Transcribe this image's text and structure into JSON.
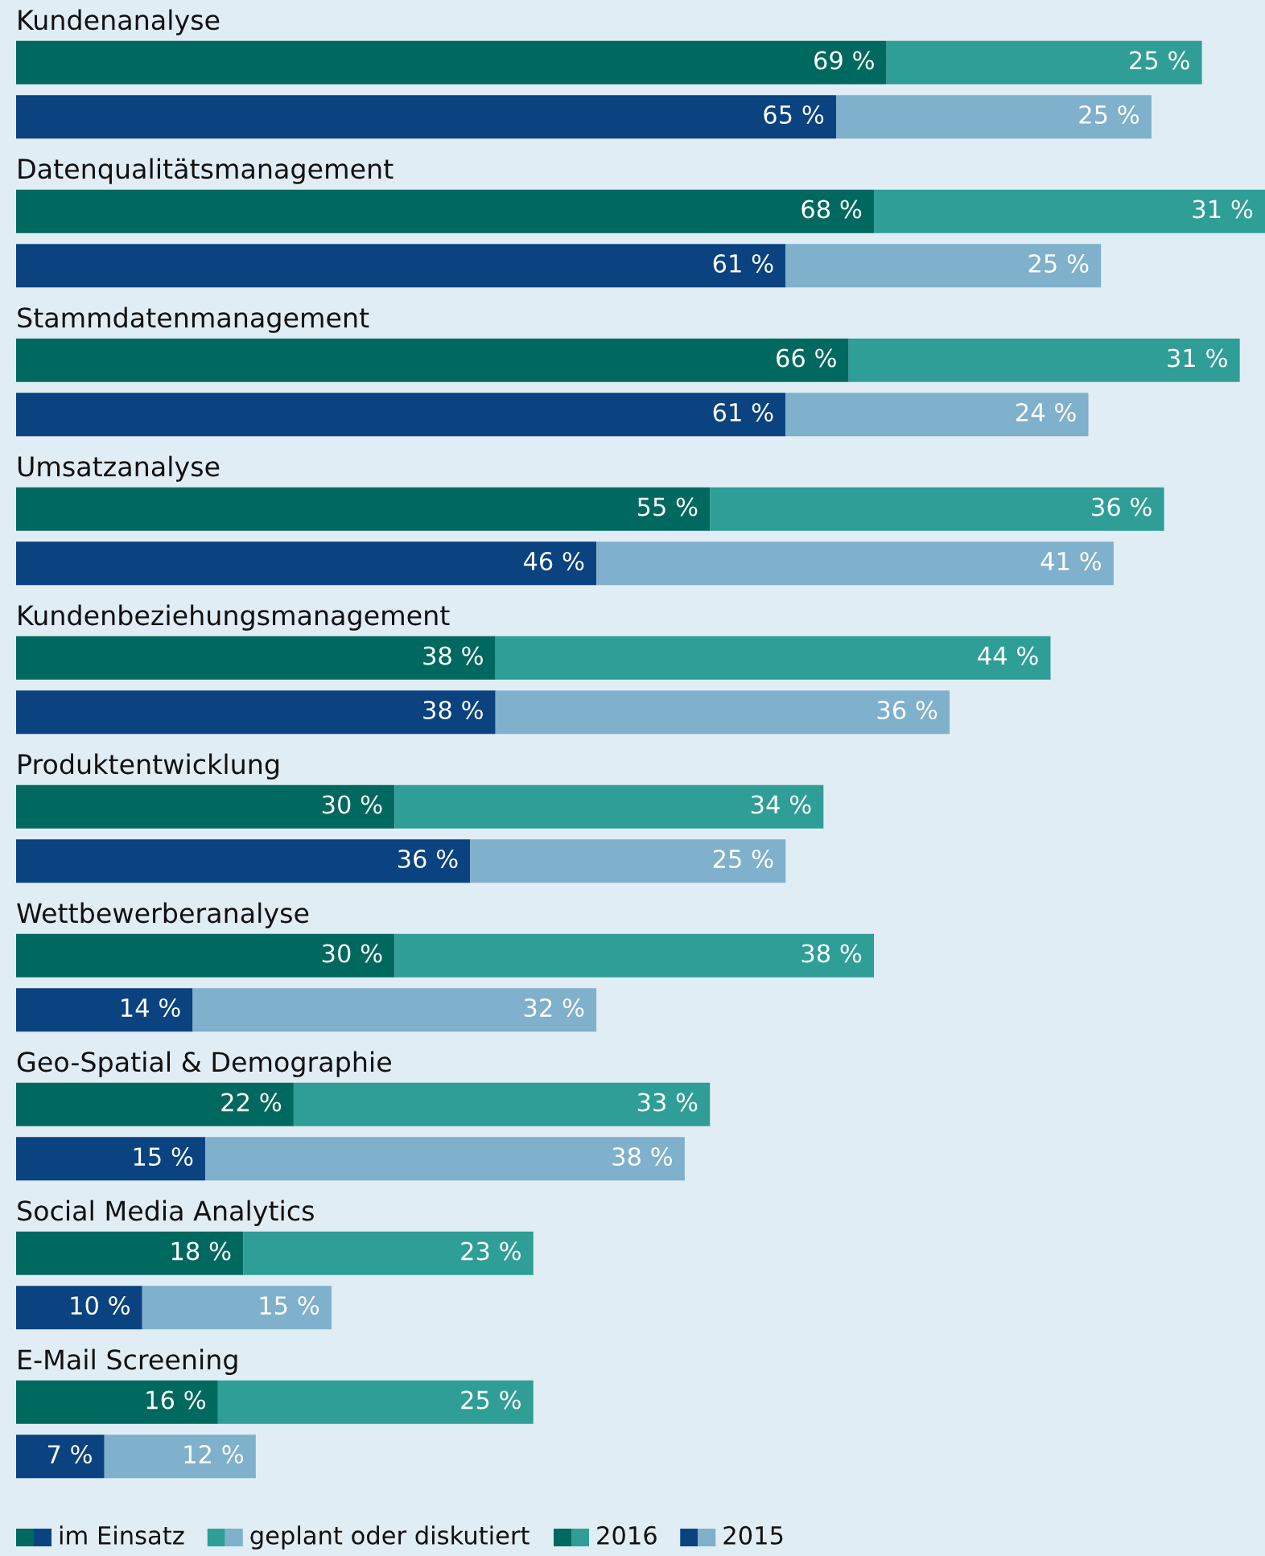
{
  "chart_data": {
    "type": "bar",
    "orientation": "horizontal",
    "stacked": true,
    "categories": [
      "Kundenanalyse",
      null,
      "Datenqualitätsmanagement",
      null,
      "Stammdatenmanagement",
      null,
      "Umsatzanalyse",
      null,
      "Kundenbeziehungsmanagement",
      null,
      "Produktentwicklung",
      null,
      "Wettbewerberanalyse",
      null,
      "Geo-Spatial & Demographie",
      null,
      "Social Media Analytics",
      null,
      "E-Mail Screening",
      null
    ],
    "xlim": [
      0,
      99
    ],
    "series": [
      {
        "name": "im Einsatz",
        "colors": [
          "#00695f",
          "#0a437f",
          "#00695f",
          "#0a437f",
          "#00695f",
          "#0a437f",
          "#00695f",
          "#0a437f",
          "#00695f",
          "#0a437f",
          "#00695f",
          "#0a437f",
          "#00695f",
          "#0a437f",
          "#00695f",
          "#0a437f",
          "#00695f",
          "#0a437f",
          "#00695f",
          "#0a437f"
        ],
        "values": [
          69,
          65,
          68,
          61,
          66,
          61,
          55,
          46,
          38,
          38,
          30,
          36,
          30,
          14,
          22,
          15,
          18,
          10,
          16,
          7
        ],
        "value_labels": [
          "69 %",
          "65 %",
          "68 %",
          "61 %",
          "66 %",
          "61 %",
          "55 %",
          "46 %",
          "38 %",
          "38 %",
          "30 %",
          "36 %",
          "30 %",
          "14 %",
          "22 %",
          "15 %",
          "18 %",
          "10 %",
          "16 %",
          "7 %"
        ]
      },
      {
        "name": "geplant oder diskutiert",
        "colors": [
          "#2e9e97",
          "#7fb0cc",
          "#2e9e97",
          "#7fb0cc",
          "#2e9e97",
          "#7fb0cc",
          "#2e9e97",
          "#7fb0cc",
          "#2e9e97",
          "#7fb0cc",
          "#2e9e97",
          "#7fb0cc",
          "#2e9e97",
          "#7fb0cc",
          "#2e9e97",
          "#7fb0cc",
          "#2e9e97",
          "#7fb0cc",
          "#2e9e97",
          "#7fb0cc"
        ],
        "values": [
          25,
          25,
          31,
          25,
          31,
          24,
          36,
          41,
          44,
          36,
          34,
          25,
          38,
          32,
          33,
          38,
          23,
          15,
          25,
          12
        ],
        "value_labels": [
          "25 %",
          "25 %",
          "31 %",
          "25 %",
          "31 %",
          "24 %",
          "36 %",
          "41 %",
          "44 %",
          "36 %",
          "34 %",
          "25 %",
          "38 %",
          "32 %",
          "33 %",
          "38 %",
          "23 %",
          "15 %",
          "25 %",
          "12 %"
        ]
      }
    ],
    "annotations": [
      "2016",
      "2015"
    ],
    "legend": "bottom"
  }
}
